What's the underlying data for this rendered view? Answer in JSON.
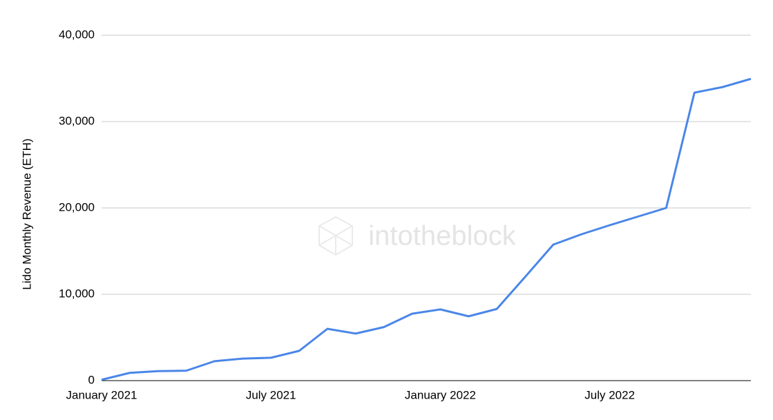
{
  "chart_data": {
    "type": "line",
    "y_label": "Lido Monthly Revenue (ETH)",
    "watermark": "intotheblock",
    "categories": [
      "January 2021",
      null,
      null,
      null,
      null,
      null,
      "July 2021",
      null,
      null,
      null,
      null,
      null,
      "January 2022",
      null,
      null,
      null,
      null,
      null,
      "July 2022",
      null,
      null,
      null,
      null,
      null
    ],
    "series": [
      {
        "name": "Lido Monthly Revenue",
        "color": "#4a86e8",
        "values": [
          100,
          900,
          1100,
          1150,
          2250,
          2550,
          2650,
          3450,
          6000,
          5450,
          6200,
          7750,
          8250,
          7450,
          8300,
          12000,
          15750,
          16950,
          18000,
          19000,
          20000,
          33350,
          34000,
          34950
        ]
      }
    ],
    "ylim": [
      0,
      40000
    ],
    "yticks": [
      0,
      {
        "value": 10000,
        "label": "10,000"
      },
      {
        "value": 20000,
        "label": "20,000"
      },
      {
        "value": 30000,
        "label": "30,000"
      },
      {
        "value": 40000,
        "label": "40,000"
      }
    ],
    "grid": true
  }
}
